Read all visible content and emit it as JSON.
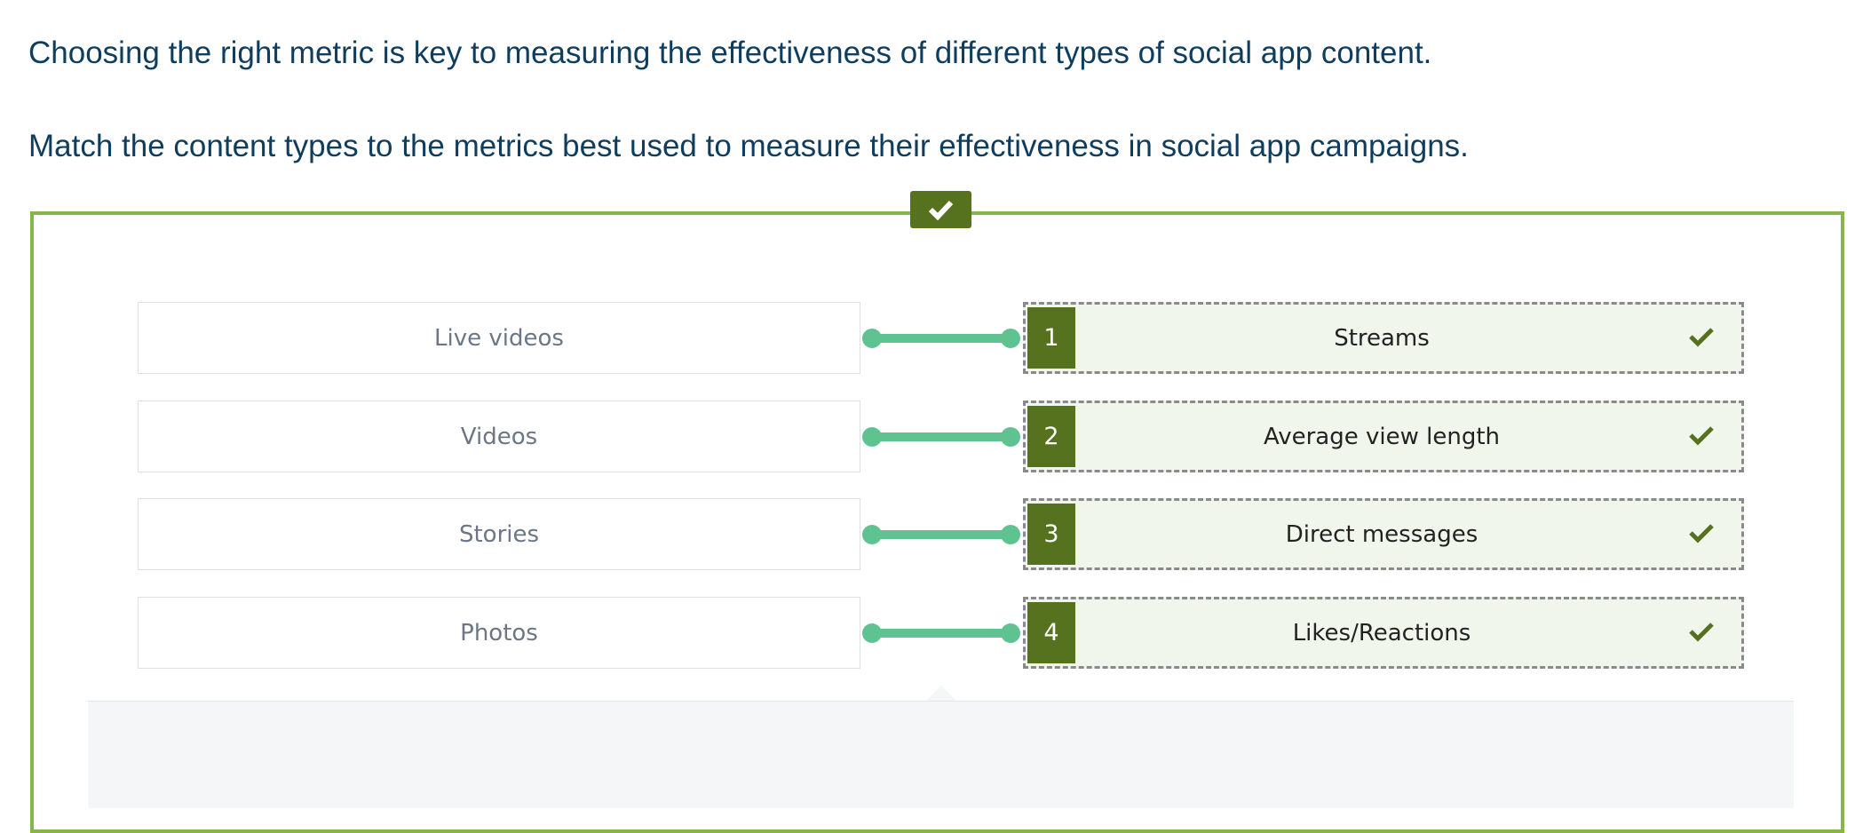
{
  "intro": "Choosing the right metric is key to measuring the effectiveness of different types of social app content.",
  "instruction": "Match the content types to the metrics best used to measure their effectiveness in social app campaigns.",
  "pairs": [
    {
      "content": "Live videos",
      "number": 1,
      "metric": "Streams"
    },
    {
      "content": "Videos",
      "number": 2,
      "metric": "Average view length"
    },
    {
      "content": "Stories",
      "number": 3,
      "metric": "Direct messages"
    },
    {
      "content": "Photos",
      "number": 4,
      "metric": "Likes/Reactions"
    }
  ]
}
